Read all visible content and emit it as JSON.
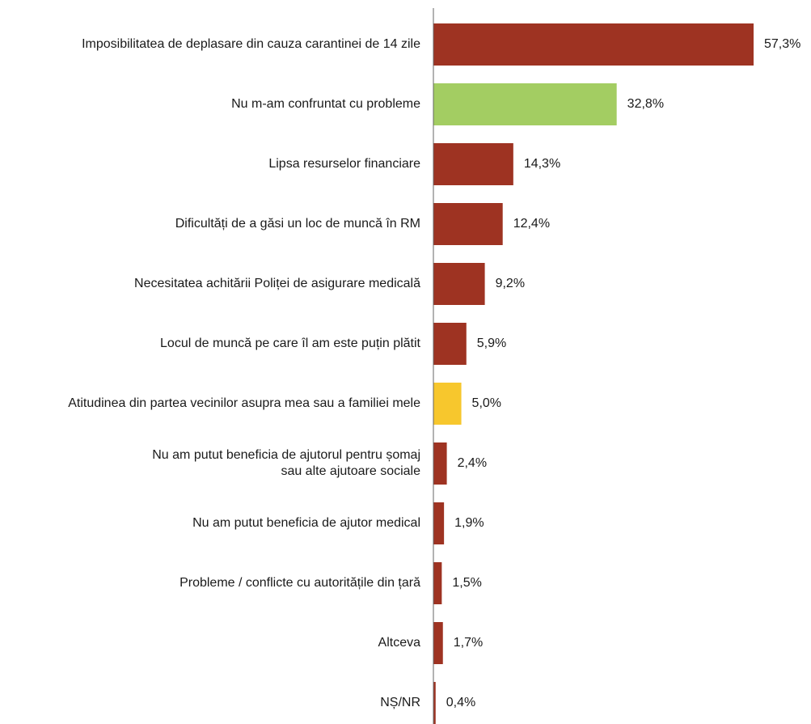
{
  "chart_data": {
    "type": "bar",
    "orientation": "horizontal",
    "categories": [
      [
        "Imposibilitatea de deplasare din cauza carantinei de 14 zile"
      ],
      [
        "Nu m-am confruntat cu probleme"
      ],
      [
        "Lipsa resurselor financiare"
      ],
      [
        "Dificultăți de a găsi un loc de muncă în RM"
      ],
      [
        "Necesitatea achitării Poliței de asigurare medicală"
      ],
      [
        "Locul de muncă pe care îl am este puțin plătit"
      ],
      [
        "Atitudinea din partea vecinilor asupra mea sau a familiei mele"
      ],
      [
        "Nu am putut beneficia de ajutorul pentru șomaj",
        "sau alte ajutoare sociale"
      ],
      [
        "Nu am putut beneficia de ajutor medical"
      ],
      [
        "Probleme / conflicte cu autoritățile din țară"
      ],
      [
        "Altceva"
      ],
      [
        "NȘ/NR"
      ]
    ],
    "values": [
      57.3,
      32.8,
      14.3,
      12.4,
      9.2,
      5.9,
      5.0,
      2.4,
      1.9,
      1.5,
      1.7,
      0.4
    ],
    "value_labels": [
      "57,3%",
      "32,8%",
      "14,3%",
      "12,4%",
      "9,2%",
      "5,9%",
      "5,0%",
      "2,4%",
      "1,9%",
      "1,5%",
      "1,7%",
      "0,4%"
    ],
    "colors": [
      "#9e3322",
      "#a3cd62",
      "#9e3322",
      "#9e3322",
      "#9e3322",
      "#9e3322",
      "#f7c72d",
      "#9e3322",
      "#9e3322",
      "#9e3322",
      "#9e3322",
      "#9e3322"
    ],
    "axis_color": "#666666",
    "xlim": [
      0,
      57.3
    ],
    "grid": false,
    "legend": "none"
  }
}
